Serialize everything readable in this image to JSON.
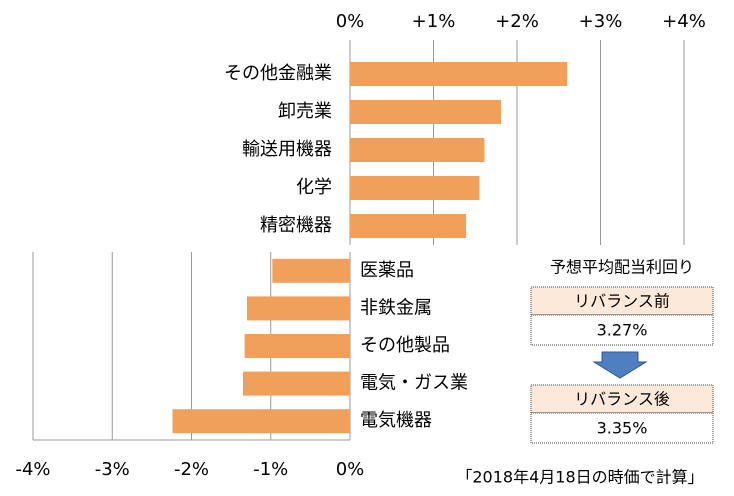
{
  "chart_data": [
    {
      "type": "bar",
      "orientation": "horizontal",
      "categories": [
        "その他金融業",
        "卸売業",
        "輸送用機器",
        "化学",
        "精密機器"
      ],
      "values": [
        2.6,
        1.81,
        1.61,
        1.55,
        1.39
      ],
      "color": "#f0a05a",
      "xlim": [
        0,
        4
      ],
      "xticks": [
        {
          "value": 0,
          "label": "0%"
        },
        {
          "value": 1,
          "label": "+1%"
        },
        {
          "value": 2,
          "label": "+2%"
        },
        {
          "value": 3,
          "label": "+3%"
        },
        {
          "value": 4,
          "label": "+4%"
        }
      ],
      "grid": true
    },
    {
      "type": "bar",
      "orientation": "horizontal",
      "categories": [
        "医薬品",
        "非鉄金属",
        "その他製品",
        "電気・ガス業",
        "電気機器"
      ],
      "values": [
        -0.98,
        -1.3,
        -1.33,
        -1.35,
        -2.24
      ],
      "color": "#f0a05a",
      "xlim": [
        -4,
        0
      ],
      "xticks": [
        {
          "value": -4,
          "label": "-4%"
        },
        {
          "value": -3,
          "label": "-3%"
        },
        {
          "value": -2,
          "label": "-2%"
        },
        {
          "value": -1,
          "label": "-1%"
        },
        {
          "value": 0,
          "label": "0%"
        }
      ],
      "grid": true
    }
  ],
  "yield_box": {
    "title": "予想平均配当利回り",
    "before_label": "リバランス前",
    "before_value": "3.27%",
    "after_label": "リバランス後",
    "after_value": "3.35%"
  },
  "note": "「2018年4月18日の時価で計算」"
}
